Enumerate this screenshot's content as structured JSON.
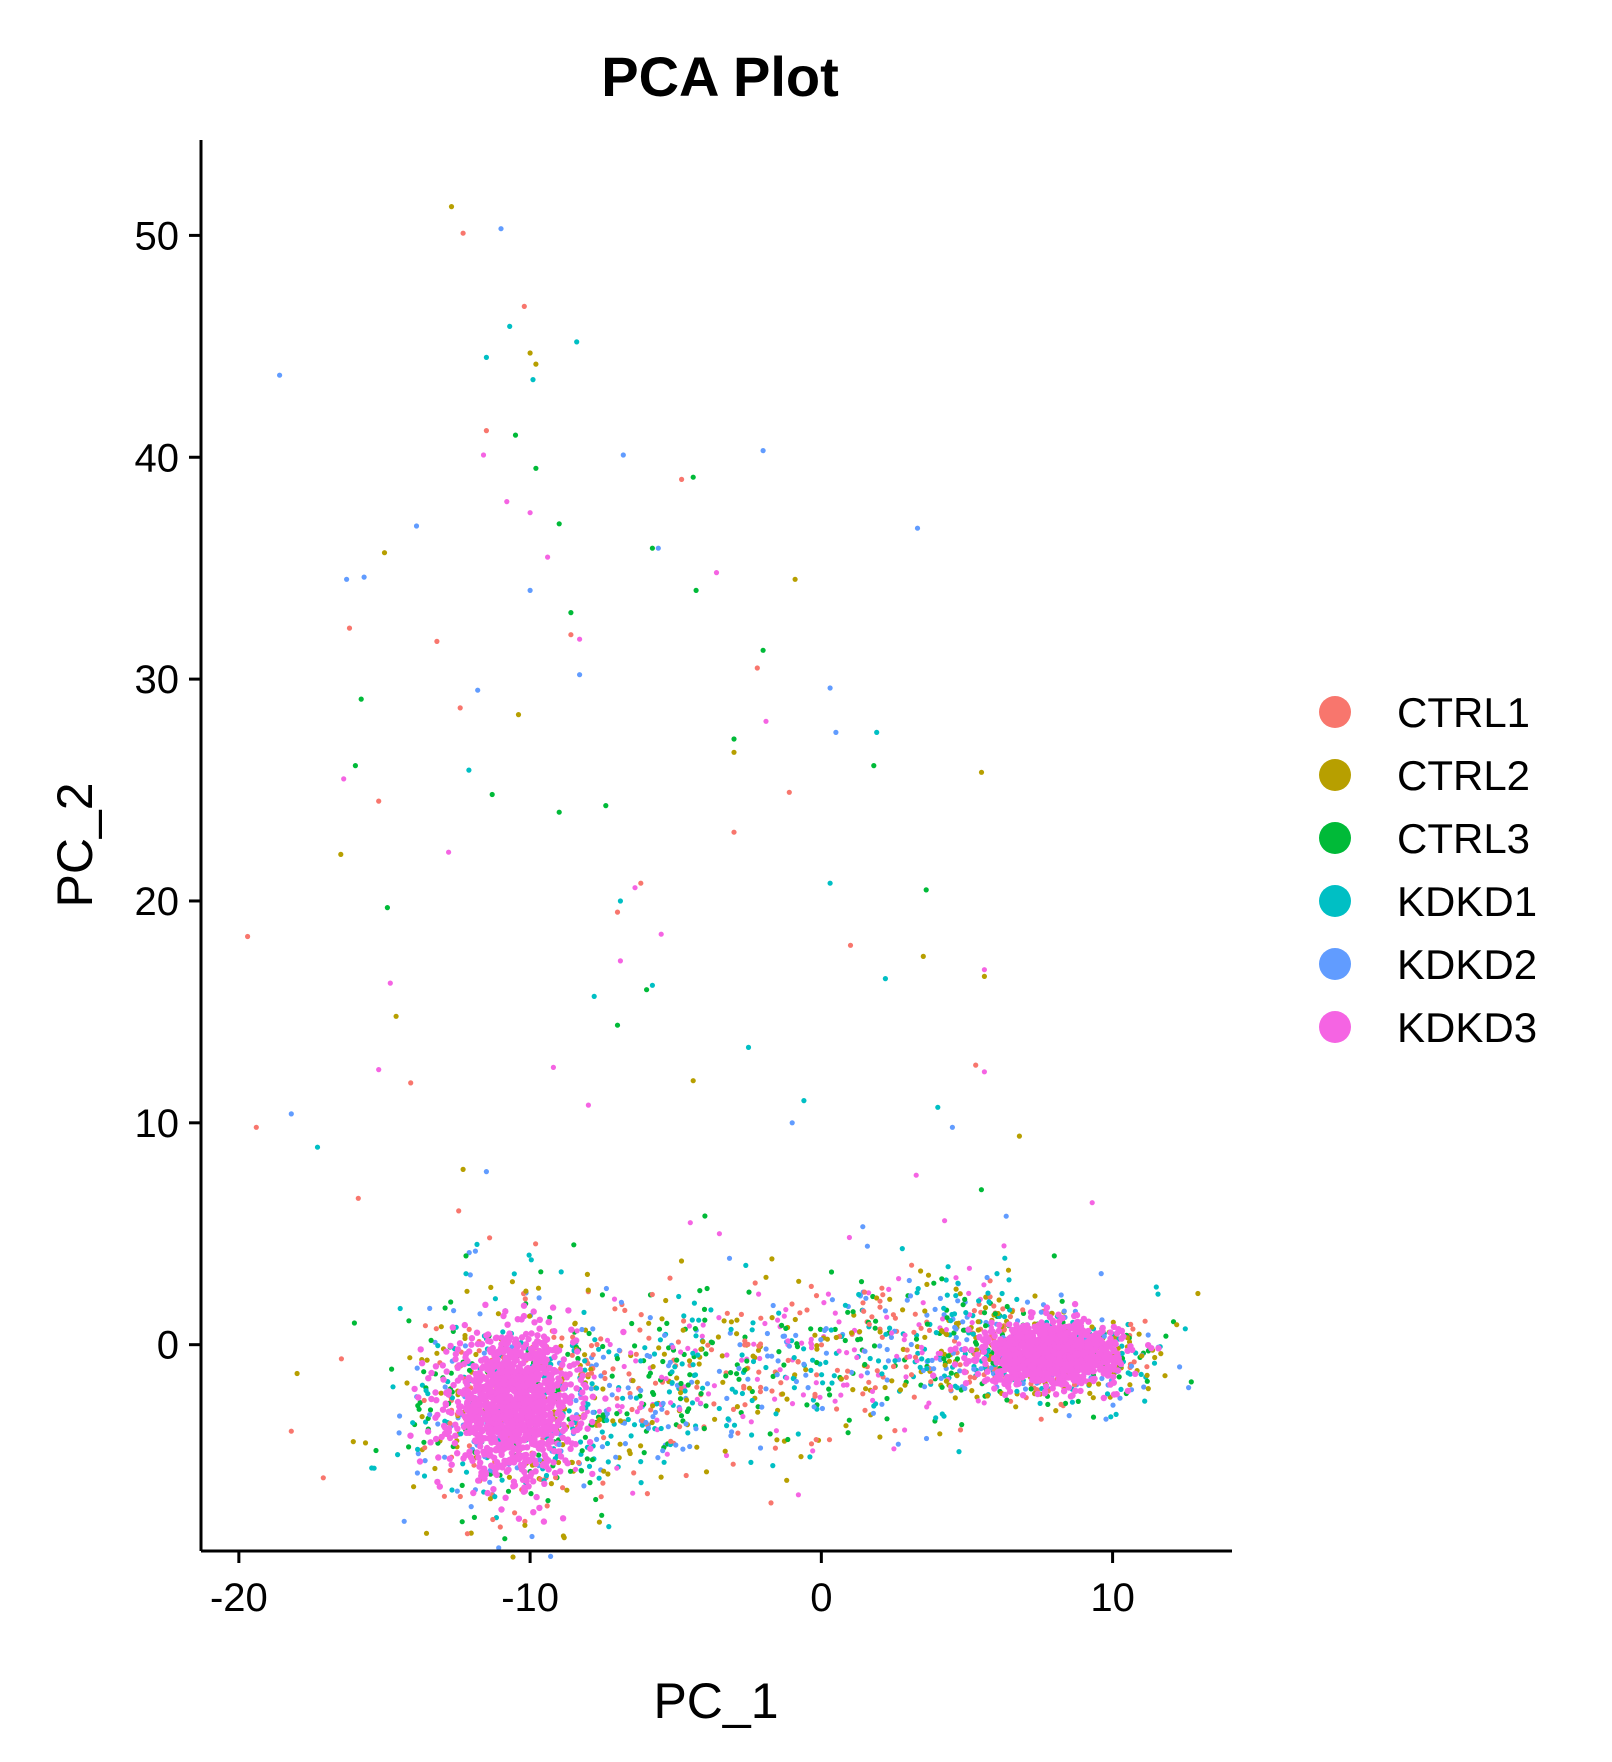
{
  "chart_data": {
    "type": "scatter",
    "title": "PCA Plot",
    "xlabel": "PC_1",
    "ylabel": "PC_2",
    "xlim": [
      -21.3,
      14.1
    ],
    "ylim": [
      -9.3,
      54.3
    ],
    "x_ticks": [
      -20,
      -10,
      0,
      10
    ],
    "y_ticks": [
      0,
      10,
      20,
      30,
      40,
      50
    ],
    "x_tick_labels": [
      "-20",
      "-10",
      "0",
      "10"
    ],
    "y_tick_labels": [
      "0",
      "10",
      "20",
      "30",
      "40",
      "50"
    ],
    "grid": false,
    "legend_position": "right",
    "series": [
      {
        "name": "CTRL1",
        "color": "#F8766D",
        "values": [
          [
            -19.7,
            18.4
          ],
          [
            -19.4,
            9.8
          ],
          [
            -12.3,
            50.1
          ],
          [
            -10.2,
            46.8
          ],
          [
            -16.2,
            32.3
          ],
          [
            -12.4,
            28.7
          ],
          [
            -15.2,
            24.5
          ],
          [
            -15.9,
            6.6
          ],
          [
            -13.2,
            31.7
          ],
          [
            -11.5,
            41.2
          ],
          [
            -2.2,
            30.5
          ],
          [
            -1.1,
            24.9
          ],
          [
            -4.8,
            39.0
          ],
          [
            -3.0,
            23.1
          ],
          [
            1.0,
            18.0
          ],
          [
            5.3,
            12.6
          ],
          [
            -17.1,
            -6.0
          ],
          [
            -18.2,
            -3.9
          ],
          [
            -14.1,
            11.8
          ],
          [
            -8.6,
            32.0
          ],
          [
            -7.0,
            19.5
          ],
          [
            -6.2,
            20.8
          ]
        ]
      },
      {
        "name": "CTRL2",
        "color": "#B79F00",
        "values": [
          [
            -12.7,
            51.3
          ],
          [
            -10.0,
            44.7
          ],
          [
            -9.8,
            44.2
          ],
          [
            -15.0,
            35.7
          ],
          [
            -16.5,
            22.1
          ],
          [
            -14.6,
            14.8
          ],
          [
            -12.3,
            7.9
          ],
          [
            -0.9,
            34.5
          ],
          [
            -3.0,
            26.7
          ],
          [
            5.5,
            25.8
          ],
          [
            5.6,
            16.6
          ],
          [
            6.8,
            9.4
          ],
          [
            3.5,
            17.5
          ],
          [
            -4.4,
            11.9
          ],
          [
            -10.4,
            28.4
          ],
          [
            -18.0,
            -1.3
          ],
          [
            -14.0,
            -6.4
          ],
          [
            -7.5,
            -2.0
          ],
          [
            -3.3,
            -4.8
          ],
          [
            11.0,
            -0.5
          ],
          [
            12.2,
            0.9
          ],
          [
            11.8,
            -1.4
          ],
          [
            9.2,
            -1.8
          ],
          [
            4.6,
            -2.4
          ]
        ]
      },
      {
        "name": "CTRL3",
        "color": "#00BA38",
        "values": [
          [
            -10.5,
            41.0
          ],
          [
            -9.8,
            39.5
          ],
          [
            -9.0,
            37.0
          ],
          [
            -8.6,
            33.0
          ],
          [
            -7.4,
            24.3
          ],
          [
            -4.4,
            39.1
          ],
          [
            -4.3,
            34.0
          ],
          [
            -5.8,
            35.9
          ],
          [
            -2.0,
            31.3
          ],
          [
            -3.0,
            27.3
          ],
          [
            1.8,
            26.1
          ],
          [
            3.6,
            20.5
          ],
          [
            -15.8,
            29.1
          ],
          [
            -14.9,
            19.7
          ],
          [
            -16.0,
            26.1
          ],
          [
            -11.3,
            24.8
          ],
          [
            -6.0,
            16.0
          ],
          [
            -9.0,
            24.0
          ],
          [
            -7.0,
            14.4
          ],
          [
            -12.2,
            4.0
          ],
          [
            -8.5,
            4.5
          ],
          [
            -4.0,
            5.8
          ],
          [
            8.0,
            4.0
          ]
        ]
      },
      {
        "name": "KDKD1",
        "color": "#00BFC4",
        "values": [
          [
            -10.7,
            45.9
          ],
          [
            -9.9,
            43.5
          ],
          [
            -11.5,
            44.5
          ],
          [
            -8.4,
            45.2
          ],
          [
            -17.3,
            8.9
          ],
          [
            -12.1,
            25.9
          ],
          [
            1.9,
            27.6
          ],
          [
            0.3,
            20.8
          ],
          [
            4.0,
            10.7
          ],
          [
            -5.8,
            16.2
          ],
          [
            -6.9,
            20.0
          ],
          [
            -7.8,
            15.7
          ],
          [
            -2.5,
            13.4
          ],
          [
            -0.6,
            11.0
          ],
          [
            -12.2,
            3.2
          ],
          [
            11.5,
            2.6
          ],
          [
            -5.4,
            -5.3
          ],
          [
            6.3,
            3.9
          ],
          [
            2.2,
            16.5
          ]
        ]
      },
      {
        "name": "KDKD2",
        "color": "#619CFF",
        "values": [
          [
            -18.6,
            43.7
          ],
          [
            -11.0,
            50.3
          ],
          [
            -2.0,
            40.3
          ],
          [
            -6.8,
            40.1
          ],
          [
            -13.9,
            36.9
          ],
          [
            -16.3,
            34.5
          ],
          [
            -15.7,
            34.6
          ],
          [
            -5.6,
            35.9
          ],
          [
            3.3,
            36.8
          ],
          [
            0.3,
            29.6
          ],
          [
            0.5,
            27.6
          ],
          [
            -11.8,
            29.5
          ],
          [
            -18.2,
            10.4
          ],
          [
            -11.5,
            7.8
          ],
          [
            -10.0,
            34.0
          ],
          [
            -8.3,
            30.2
          ],
          [
            -1.0,
            10.0
          ],
          [
            4.5,
            9.8
          ],
          [
            -12.5,
            -6.6
          ],
          [
            12.3,
            -1.0
          ],
          [
            1.5,
            -0.3
          ],
          [
            -3.5,
            -1.2
          ],
          [
            -9.0,
            -4.5
          ]
        ]
      },
      {
        "name": "KDKD3",
        "color": "#F564E3",
        "values": [
          [
            -16.4,
            25.5
          ],
          [
            -14.8,
            16.3
          ],
          [
            -12.8,
            22.2
          ],
          [
            -15.2,
            12.4
          ],
          [
            -3.6,
            34.8
          ],
          [
            -1.9,
            28.1
          ],
          [
            5.6,
            16.9
          ],
          [
            5.6,
            12.3
          ],
          [
            9.3,
            6.4
          ],
          [
            -11.6,
            40.1
          ],
          [
            -10.8,
            38.0
          ],
          [
            -10.0,
            37.5
          ],
          [
            -9.4,
            35.5
          ],
          [
            -8.3,
            31.8
          ],
          [
            -6.4,
            20.6
          ],
          [
            -5.5,
            18.5
          ],
          [
            -6.9,
            17.3
          ],
          [
            -8.0,
            10.8
          ],
          [
            -9.2,
            12.5
          ],
          [
            -4.5,
            5.5
          ],
          [
            -3.5,
            5.0
          ],
          [
            -11.0,
            -2.5
          ],
          [
            7.8,
            -0.2
          ]
        ]
      }
    ],
    "dense_clusters": [
      {
        "cx": -10.6,
        "cy": -2.7,
        "sx": 1.4,
        "sy": 2.0,
        "n": 1300
      },
      {
        "cx": 7.9,
        "cy": -0.4,
        "sx": 1.5,
        "sy": 0.9,
        "n": 1100
      }
    ],
    "bridge_band": {
      "x_from": -8.5,
      "x_to": 6.5,
      "y_from": -3.0,
      "y_to": 0.2,
      "n": 900
    }
  }
}
